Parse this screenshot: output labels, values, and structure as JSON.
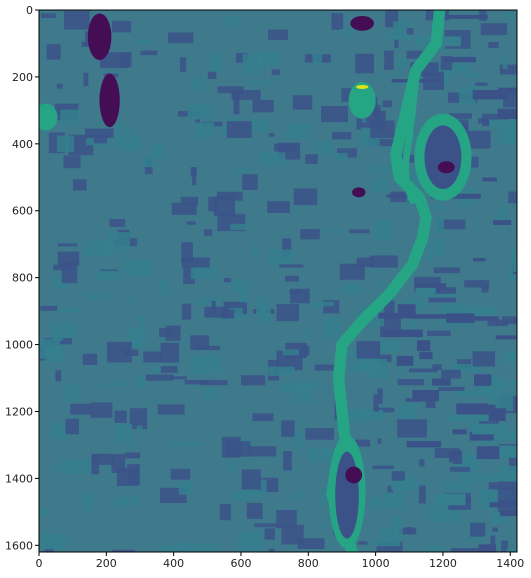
{
  "chart_data": {
    "type": "heatmap",
    "colormap": "viridis",
    "title": "",
    "xlabel": "",
    "ylabel": "",
    "xlim": [
      0,
      1420
    ],
    "ylim": [
      1620,
      0
    ],
    "xticks": [
      0,
      200,
      400,
      600,
      800,
      1000,
      1200,
      1400
    ],
    "yticks": [
      0,
      200,
      400,
      600,
      800,
      1000,
      1200,
      1400,
      1600
    ],
    "colors": {
      "background": "#3e7a8c",
      "field_dark": "#3b5288",
      "field_mid": "#357f8e",
      "water": "#26a585",
      "deep": "#450d54",
      "bright": "#dde318"
    },
    "features": [
      {
        "kind": "river",
        "points": [
          [
            1190,
            0
          ],
          [
            1180,
            100
          ],
          [
            1120,
            180
          ],
          [
            1100,
            260
          ],
          [
            1080,
            350
          ],
          [
            1060,
            430
          ],
          [
            1070,
            500
          ],
          [
            1130,
            560
          ],
          [
            1150,
            620
          ],
          [
            1140,
            680
          ],
          [
            1110,
            760
          ],
          [
            1040,
            850
          ],
          [
            960,
            930
          ],
          [
            900,
            1000
          ],
          [
            890,
            1100
          ],
          [
            900,
            1200
          ],
          [
            910,
            1290
          ],
          [
            880,
            1380
          ],
          [
            870,
            1450
          ],
          [
            900,
            1520
          ],
          [
            930,
            1620
          ]
        ],
        "width": 34,
        "color": "water"
      },
      {
        "kind": "river-branch",
        "points": [
          [
            1120,
            200
          ],
          [
            1110,
            300
          ],
          [
            1100,
            380
          ],
          [
            1090,
            450
          ],
          [
            1090,
            520
          ],
          [
            1110,
            570
          ]
        ],
        "width": 20,
        "color": "water"
      },
      {
        "kind": "island",
        "cx": 1200,
        "cy": 440,
        "rx": 85,
        "ry": 130,
        "color": "water"
      },
      {
        "kind": "island",
        "cx": 1200,
        "cy": 440,
        "rx": 55,
        "ry": 95,
        "color": "field_dark"
      },
      {
        "kind": "island",
        "cx": 915,
        "cy": 1440,
        "rx": 55,
        "ry": 170,
        "color": "water"
      },
      {
        "kind": "island",
        "cx": 915,
        "cy": 1450,
        "rx": 35,
        "ry": 130,
        "color": "field_dark"
      },
      {
        "kind": "lake",
        "cx": 180,
        "cy": 80,
        "rx": 35,
        "ry": 70,
        "color": "deep"
      },
      {
        "kind": "lake",
        "cx": 210,
        "cy": 270,
        "rx": 30,
        "ry": 80,
        "color": "deep"
      },
      {
        "kind": "lake",
        "cx": 960,
        "cy": 40,
        "rx": 35,
        "ry": 22,
        "color": "deep"
      },
      {
        "kind": "lake",
        "cx": 20,
        "cy": 320,
        "rx": 35,
        "ry": 40,
        "color": "water"
      },
      {
        "kind": "lake",
        "cx": 960,
        "cy": 270,
        "rx": 40,
        "ry": 55,
        "color": "water"
      },
      {
        "kind": "lake",
        "cx": 950,
        "cy": 545,
        "rx": 20,
        "ry": 15,
        "color": "deep"
      },
      {
        "kind": "lake",
        "cx": 1210,
        "cy": 470,
        "rx": 25,
        "ry": 18,
        "color": "deep"
      },
      {
        "kind": "lake",
        "cx": 935,
        "cy": 1390,
        "rx": 25,
        "ry": 25,
        "color": "deep"
      },
      {
        "kind": "spot",
        "cx": 960,
        "cy": 230,
        "rx": 18,
        "ry": 6,
        "color": "bright"
      }
    ]
  }
}
